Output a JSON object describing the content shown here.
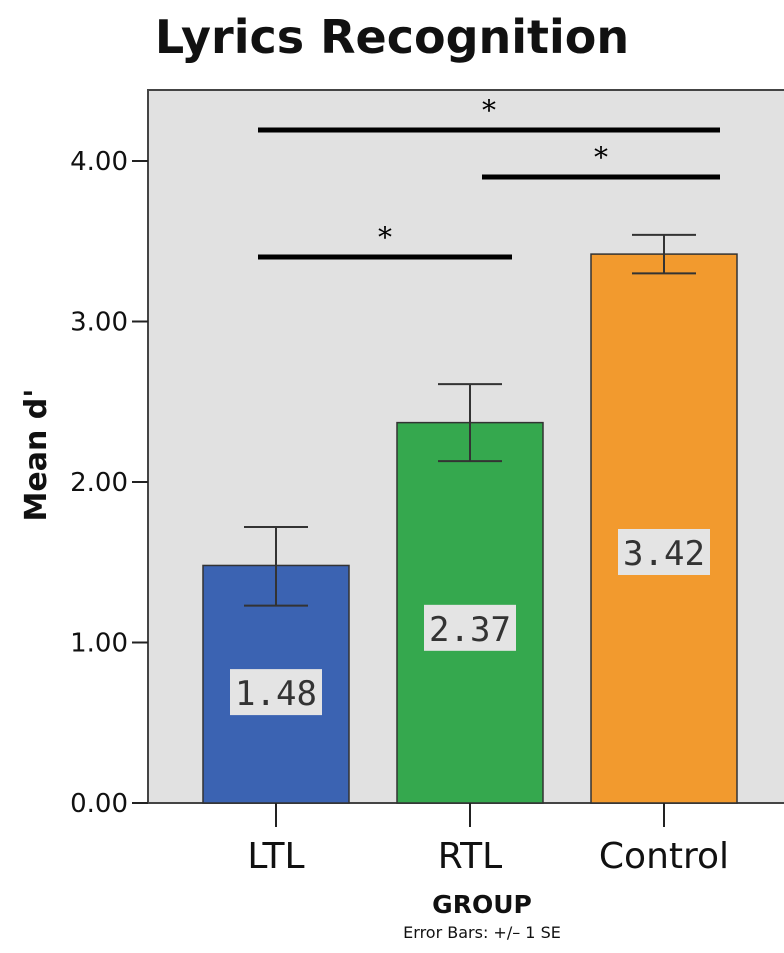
{
  "chart_data": {
    "type": "bar",
    "title": "Lyrics Recognition",
    "xlabel": "GROUP",
    "ylabel": "Mean d'",
    "footnote": "Error Bars: +/– 1 SE",
    "categories": [
      "LTL",
      "RTL",
      "Control"
    ],
    "values": [
      1.48,
      2.37,
      3.42
    ],
    "value_labels": [
      "1.48",
      "2.37",
      "3.42"
    ],
    "error_bars": [
      {
        "low": 1.23,
        "high": 1.72
      },
      {
        "low": 2.13,
        "high": 2.61
      },
      {
        "low": 3.3,
        "high": 3.54
      }
    ],
    "colors": [
      "#3b63b2",
      "#35a84e",
      "#f29a2e"
    ],
    "ylim": [
      0,
      4.4
    ],
    "yticks": [
      0,
      1,
      2,
      3,
      4
    ],
    "ytick_labels": [
      "0.00",
      "1.00",
      "2.00",
      "3.00",
      "4.00"
    ],
    "grid": false,
    "plot_background": "#e1e1e1",
    "significance": [
      {
        "from": "LTL",
        "to": "Control",
        "y": 4.2,
        "label": "*"
      },
      {
        "from": "RTL",
        "to": "Control",
        "y": 3.9,
        "label": "*"
      },
      {
        "from": "LTL",
        "to": "RTL",
        "y": 3.4,
        "label": "*"
      }
    ]
  }
}
